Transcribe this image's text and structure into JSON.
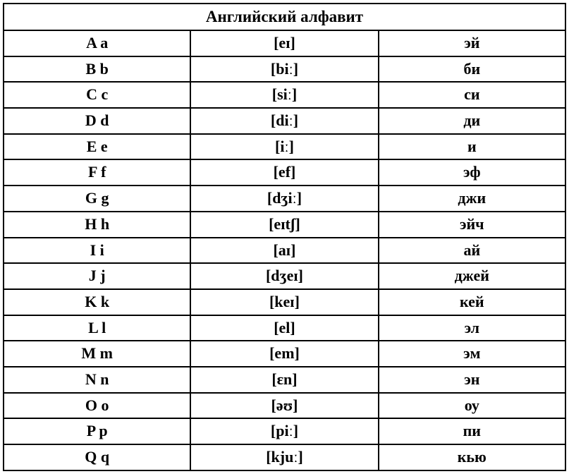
{
  "table": {
    "type": "table",
    "title": "Английский алфавит",
    "background_color": "#ffffff",
    "border_color": "#000000",
    "text_color": "#000000",
    "title_fontsize": 23,
    "cell_fontsize": 22,
    "font_weight": "bold",
    "font_family": "Times New Roman",
    "columns": [
      "letter",
      "ipa",
      "cyrillic"
    ],
    "column_widths": [
      "33.3%",
      "33.4%",
      "33.3%"
    ],
    "rows": [
      {
        "letter": "A a",
        "ipa": "[eɪ]",
        "cyrillic": "эй"
      },
      {
        "letter": "B b",
        "ipa": "[biː]",
        "cyrillic": "би"
      },
      {
        "letter": "C c",
        "ipa": "[siː]",
        "cyrillic": "си"
      },
      {
        "letter": "D d",
        "ipa": "[diː]",
        "cyrillic": "ди"
      },
      {
        "letter": "E e",
        "ipa": "[iː]",
        "cyrillic": "и"
      },
      {
        "letter": "F f",
        "ipa": "[ef]",
        "cyrillic": "эф"
      },
      {
        "letter": "G g",
        "ipa": "[dʒiː]",
        "cyrillic": "джи"
      },
      {
        "letter": "H h",
        "ipa": "[eɪtʃ]",
        "cyrillic": "эйч"
      },
      {
        "letter": "I i",
        "ipa": "[aɪ]",
        "cyrillic": "ай"
      },
      {
        "letter": "J j",
        "ipa": "[dʒeɪ]",
        "cyrillic": "джей"
      },
      {
        "letter": "K k",
        "ipa": "[keɪ]",
        "cyrillic": "кей"
      },
      {
        "letter": "L l",
        "ipa": "[el]",
        "cyrillic": "эл"
      },
      {
        "letter": "M m",
        "ipa": "[em]",
        "cyrillic": "эм"
      },
      {
        "letter": "N n",
        "ipa": "[ɛn]",
        "cyrillic": "эн"
      },
      {
        "letter": "O o",
        "ipa": "[əʊ]",
        "cyrillic": "оу"
      },
      {
        "letter": "P p",
        "ipa": "[piː]",
        "cyrillic": "пи"
      },
      {
        "letter": "Q q",
        "ipa": "[kjuː]",
        "cyrillic": "кью"
      }
    ]
  }
}
